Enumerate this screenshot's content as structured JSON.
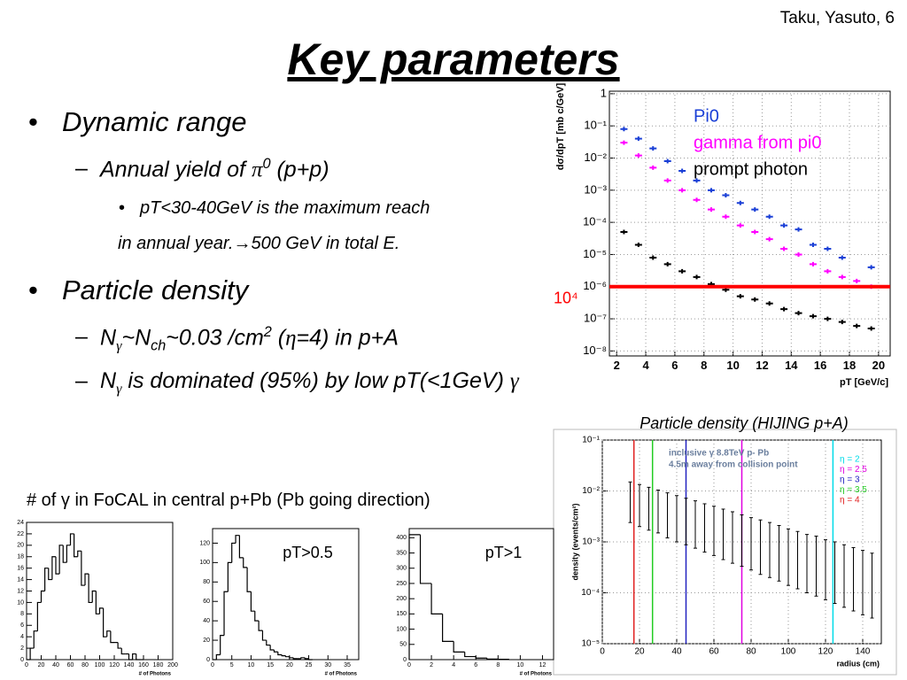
{
  "author": "Taku, Yasuto, 6",
  "title": "Key parameters",
  "bullets": [
    [
      "Dynamic range"
    ],
    [
      "Annual yield of ",
      "π",
      "0",
      " (p+p)"
    ],
    [
      "pT<30-40GeV is the maximum reach"
    ],
    [
      "in annual year.→500 GeV in total E."
    ],
    [
      "Particle density"
    ],
    [
      "N",
      "γ",
      "~N",
      "ch",
      "~0.03 /cm",
      "2",
      " (",
      "η",
      "=4) in p+A"
    ],
    [
      "N",
      "γ",
      " is dominated (95%) by low pT(<1GeV) ",
      "γ"
    ]
  ],
  "histogram_caption": "# of γ in FoCAL in central p+Pb (Pb going direction)",
  "chart_data": [
    {
      "type": "scatter",
      "xlabel": "pT [GeV/c]",
      "ylabel": "dσ/dpT [mb c/GeV]",
      "x": [
        2.5,
        3.5,
        4.5,
        5.5,
        6.5,
        7.5,
        8.5,
        9.5,
        10.5,
        11.5,
        12.5,
        13.5,
        14.5,
        15.5,
        16.5,
        17.5,
        18.5,
        19.5
      ],
      "series": [
        {
          "name": "Pi0",
          "color": "#1a3fd6",
          "values": [
            0.08,
            0.04,
            0.02,
            0.008,
            0.004,
            0.002,
            0.001,
            0.0007,
            0.0004,
            0.00025,
            0.00015,
            8e-05,
            6e-05,
            2e-05,
            1.5e-05,
            8e-06,
            null,
            4e-06
          ]
        },
        {
          "name": "gamma from pi0",
          "color": "#ff00ff",
          "values": [
            0.03,
            0.012,
            0.005,
            0.002,
            0.001,
            0.0005,
            0.00025,
            0.00015,
            8e-05,
            5e-05,
            3e-05,
            1.5e-05,
            1e-05,
            5e-06,
            3e-06,
            2e-06,
            1.5e-06,
            1e-06
          ]
        },
        {
          "name": "prompt photon",
          "color": "#000000",
          "values": [
            5e-05,
            2e-05,
            8e-06,
            5e-06,
            3e-06,
            2e-06,
            1.2e-06,
            8e-07,
            5e-07,
            4e-07,
            3e-07,
            2e-07,
            1.5e-07,
            1.2e-07,
            1e-07,
            8e-08,
            6e-08,
            5e-08
          ]
        }
      ],
      "xlim": [
        1.5,
        20.8
      ],
      "xticks": [
        2,
        4,
        6,
        8,
        10,
        12,
        14,
        16,
        18,
        20
      ],
      "ylim": [
        7e-09,
        1.2
      ],
      "yticks": [
        1,
        {
          "value": 0.1,
          "label": "10⁻¹"
        },
        {
          "value": 0.01,
          "label": "10⁻²"
        },
        {
          "value": 0.001,
          "label": "10⁻³"
        },
        {
          "value": 0.0001,
          "label": "10⁻⁴"
        },
        {
          "value": 1e-05,
          "label": "10⁻⁵"
        },
        {
          "value": 1e-06,
          "label": "10⁻⁶"
        },
        {
          "value": 1e-07,
          "label": "10⁻⁷"
        },
        {
          "value": 1e-08,
          "label": "10⁻⁸"
        }
      ],
      "ylog": true,
      "grid": true,
      "hline": 1e-06,
      "hline_color": "#ff0000",
      "annotation": "10⁴"
    },
    {
      "type": "errorbar",
      "title": "Particle density (HIJING p+A)",
      "xlabel": "radius (cm)",
      "ylabel": "density (events/cm²)",
      "x": [
        15,
        20,
        25,
        30,
        35,
        40,
        45,
        50,
        55,
        60,
        65,
        70,
        75,
        80,
        85,
        90,
        95,
        100,
        105,
        110,
        115,
        120,
        125,
        130,
        135,
        140,
        145
      ],
      "high": [
        0.015,
        0.0134,
        0.0118,
        0.0104,
        0.0092,
        0.0081,
        0.0072,
        0.0064,
        0.0056,
        0.005,
        0.0044,
        0.0039,
        0.0034,
        0.003,
        0.0027,
        0.0024,
        0.0021,
        0.0018,
        0.0016,
        0.0014,
        0.0013,
        0.0011,
        0.001,
        0.00088,
        0.00077,
        0.00068,
        0.0006
      ],
      "low": [
        0.0024,
        0.002,
        0.0017,
        0.0015,
        0.0012,
        0.001,
        0.00088,
        0.00075,
        0.00063,
        0.00054,
        0.00045,
        0.00038,
        0.00033,
        0.00028,
        0.00023,
        0.0002,
        0.00017,
        0.00014,
        0.00012,
        0.0001,
        8.6e-05,
        7.3e-05,
        6.2e-05,
        5.2e-05,
        4.4e-05,
        3.7e-05,
        3.2e-05
      ],
      "xlim": [
        0,
        150
      ],
      "xticks": [
        0,
        20,
        40,
        60,
        80,
        100,
        120,
        140
      ],
      "ylim": [
        1e-05,
        0.1
      ],
      "yticks": [
        {
          "value": 0.1,
          "label": "10⁻¹"
        },
        {
          "value": 0.01,
          "label": "10⁻²"
        },
        {
          "value": 0.001,
          "label": "10⁻³"
        },
        {
          "value": 0.0001,
          "label": "10⁻⁴"
        },
        {
          "value": 1e-05,
          "label": "10⁻⁵"
        }
      ],
      "ylog": true,
      "grid": true,
      "color": "#000000",
      "notes": [
        "inclusive γ 8.8TeV p- Pb",
        "4.5m away from collision point"
      ],
      "eta_lines": [
        {
          "name": "η = 2",
          "color": "#00dbe8",
          "x": 124
        },
        {
          "name": "η = 2.5",
          "color": "#e000e0",
          "x": 75
        },
        {
          "name": "η = 3",
          "color": "#2222c0",
          "x": 45
        },
        {
          "name": "η = 3.5",
          "color": "#22cc22",
          "x": 27
        },
        {
          "name": "η = 4",
          "color": "#e02020",
          "x": 17
        }
      ]
    },
    {
      "type": "histogram",
      "xlabel": "# of Photons",
      "bins": [
        0,
        5,
        10,
        15,
        20,
        25,
        30,
        35,
        40,
        45,
        50,
        55,
        60,
        65,
        70,
        75,
        80,
        85,
        90,
        95,
        100,
        105,
        110,
        115,
        120,
        125,
        130,
        135,
        140,
        145,
        150,
        155,
        160
      ],
      "counts": [
        0,
        2,
        5,
        10,
        12,
        16,
        14,
        18,
        15,
        20,
        17,
        20,
        22,
        18,
        19,
        13,
        15,
        10,
        12,
        8,
        9,
        4,
        5,
        3,
        3,
        2,
        1,
        1,
        0,
        1,
        0,
        0
      ],
      "xlim": [
        0,
        200
      ],
      "xticks": [
        0,
        20,
        40,
        60,
        80,
        100,
        120,
        140,
        160,
        180,
        200
      ],
      "ylim": [
        0,
        24
      ],
      "yticks": [
        0,
        2,
        4,
        6,
        8,
        10,
        12,
        14,
        16,
        18,
        20,
        22,
        24
      ],
      "color": "#000000"
    },
    {
      "type": "histogram",
      "xlabel": "# of Photons",
      "annotation": "pT>0.5",
      "bins": [
        0,
        1,
        2,
        3,
        4,
        5,
        6,
        7,
        8,
        9,
        10,
        11,
        12,
        13,
        14,
        15,
        16,
        17,
        18,
        19,
        20,
        21,
        22,
        23,
        24,
        25,
        26
      ],
      "counts": [
        0,
        5,
        25,
        70,
        100,
        120,
        128,
        105,
        95,
        70,
        50,
        40,
        30,
        20,
        15,
        10,
        8,
        5,
        4,
        3,
        2,
        1,
        1,
        2,
        1,
        0
      ],
      "xlim": [
        0,
        38
      ],
      "xticks": [
        0,
        5,
        10,
        15,
        20,
        25,
        30,
        35
      ],
      "ylim": [
        0,
        135
      ],
      "yticks": [
        0,
        20,
        40,
        60,
        80,
        100,
        120
      ],
      "color": "#000000"
    },
    {
      "type": "histogram",
      "xlabel": "# of Photons",
      "annotation": "pT>1",
      "bins": [
        0,
        1,
        2,
        3,
        4,
        5,
        6,
        7,
        8,
        9
      ],
      "counts": [
        410,
        250,
        150,
        60,
        25,
        10,
        5,
        2,
        1
      ],
      "xlim": [
        0,
        13
      ],
      "xticks": [
        0,
        2,
        4,
        6,
        8,
        10,
        12
      ],
      "ylim": [
        0,
        430
      ],
      "yticks": [
        0,
        50,
        100,
        150,
        200,
        250,
        300,
        350,
        400
      ],
      "color": "#000000"
    }
  ]
}
